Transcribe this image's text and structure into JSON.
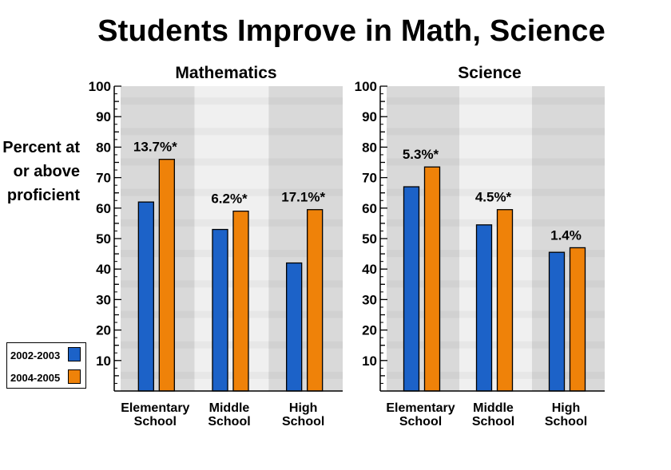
{
  "title": "Students Improve in Math, Science",
  "ylabel_lines": [
    "Percent at",
    "or above",
    "proficient"
  ],
  "legend": [
    {
      "label": "2002-2003",
      "color": "#1c62c8"
    },
    {
      "label": "2004-2005",
      "color": "#ef8209"
    }
  ],
  "colors": {
    "series_2002": "#1c62c8",
    "series_2004": "#ef8209",
    "band_dark": "#d9d9d9",
    "band_light": "#f0f0f0"
  },
  "chart_data": [
    {
      "type": "bar",
      "title": "Mathematics",
      "categories": [
        "Elementary\nSchool",
        "Middle\nSchool",
        "High\nSchool"
      ],
      "series": [
        {
          "name": "2002-2003",
          "values": [
            62,
            53,
            42
          ]
        },
        {
          "name": "2004-2005",
          "values": [
            76,
            59,
            59.5
          ]
        }
      ],
      "annotations": [
        "13.7%*",
        "6.2%*",
        "17.1%*"
      ],
      "yticks": [
        10,
        20,
        30,
        40,
        50,
        60,
        70,
        80,
        90,
        100
      ],
      "ylim": [
        0,
        100
      ]
    },
    {
      "type": "bar",
      "title": "Science",
      "categories": [
        "Elementary\nSchool",
        "Middle\nSchool",
        "High\nSchool"
      ],
      "series": [
        {
          "name": "2002-2003",
          "values": [
            67,
            54.5,
            45.5
          ]
        },
        {
          "name": "2004-2005",
          "values": [
            73.5,
            59.5,
            47
          ]
        }
      ],
      "annotations": [
        "5.3%*",
        "4.5%*",
        "1.4%"
      ],
      "yticks": [
        10,
        20,
        30,
        40,
        50,
        60,
        70,
        80,
        90,
        100
      ],
      "ylim": [
        0,
        100
      ]
    }
  ]
}
